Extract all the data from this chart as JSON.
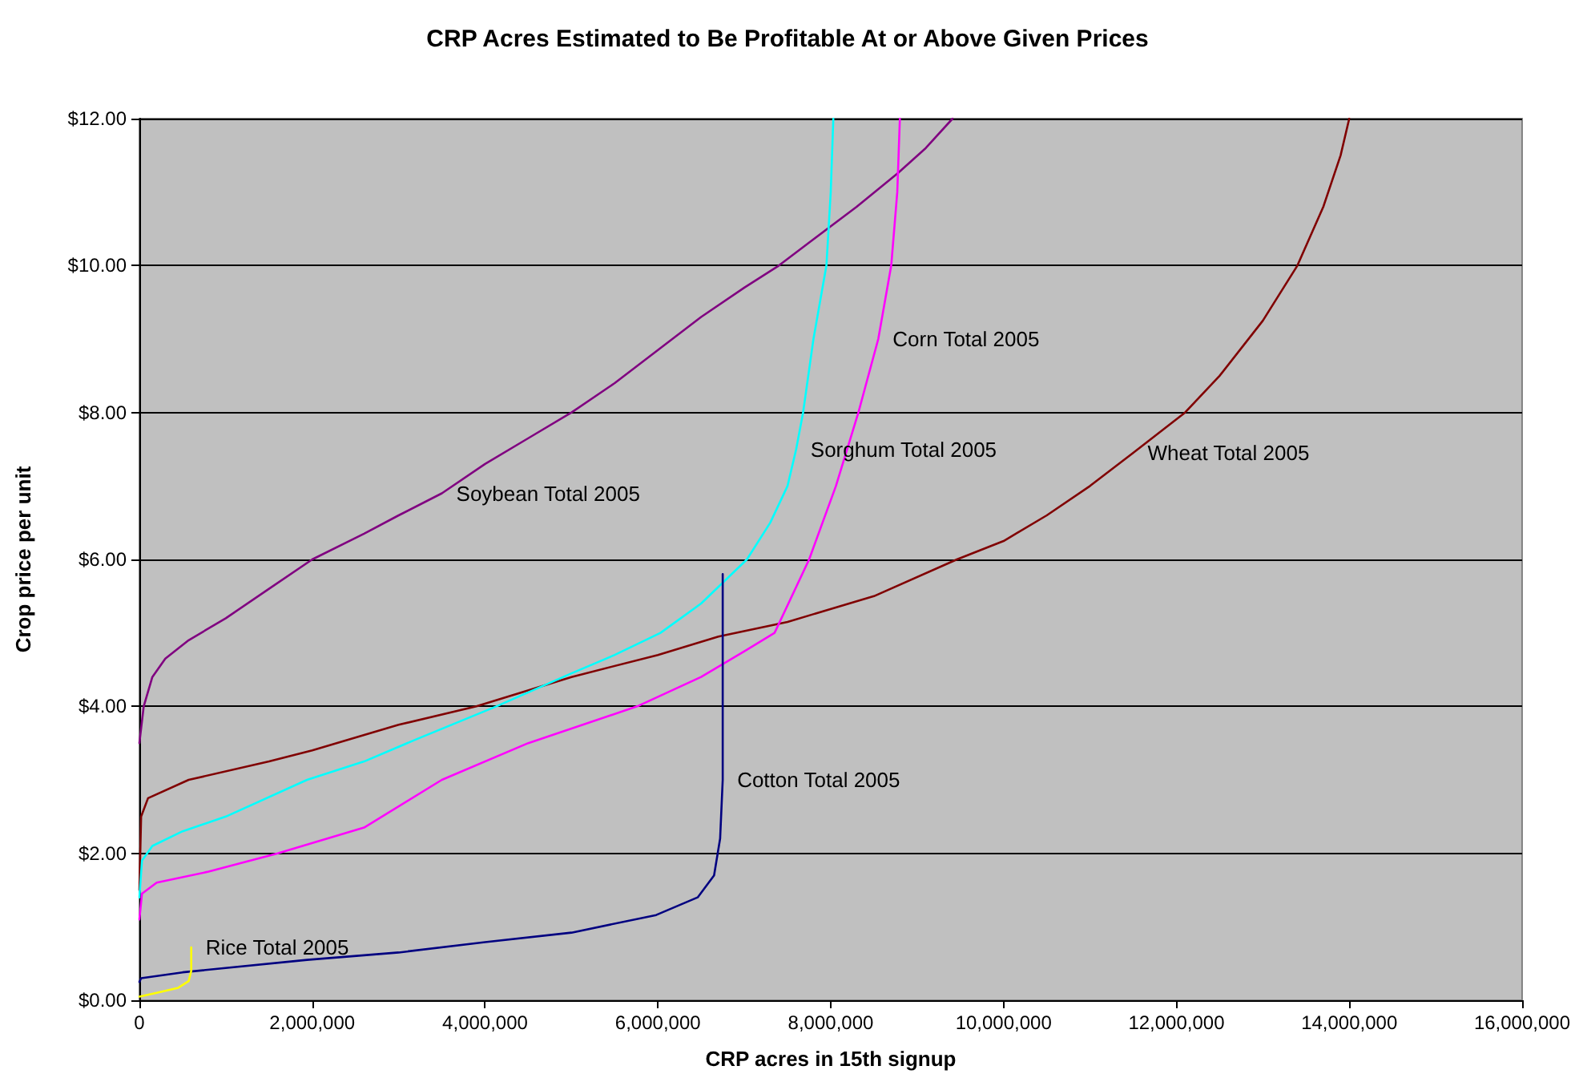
{
  "chart_data": {
    "type": "line",
    "title": "CRP Acres Estimated to Be Profitable At or Above Given Prices",
    "xlabel": "CRP acres in 15th signup",
    "ylabel": "Crop price per unit",
    "xlim": [
      0,
      16000000
    ],
    "ylim": [
      0,
      12
    ],
    "xticks": [
      {
        "value": 0,
        "label": "0"
      },
      {
        "value": 2000000,
        "label": "2,000,000"
      },
      {
        "value": 4000000,
        "label": "4,000,000"
      },
      {
        "value": 6000000,
        "label": "6,000,000"
      },
      {
        "value": 8000000,
        "label": "8,000,000"
      },
      {
        "value": 10000000,
        "label": "10,000,000"
      },
      {
        "value": 12000000,
        "label": "12,000,000"
      },
      {
        "value": 14000000,
        "label": "14,000,000"
      },
      {
        "value": 16000000,
        "label": "16,000,000"
      }
    ],
    "yticks": [
      {
        "value": 0,
        "label": "$0.00"
      },
      {
        "value": 2,
        "label": "$2.00"
      },
      {
        "value": 4,
        "label": "$4.00"
      },
      {
        "value": 6,
        "label": "$6.00"
      },
      {
        "value": 8,
        "label": "$8.00"
      },
      {
        "value": 10,
        "label": "$10.00"
      },
      {
        "value": 12,
        "label": "$12.00"
      }
    ],
    "grid": "y",
    "marker": "none",
    "line_style": "solid",
    "series": [
      {
        "color": "#800080",
        "x": [
          0,
          50000,
          150000,
          300000,
          570000,
          1000000,
          1500000,
          2000000,
          2600000,
          3000000,
          3500000,
          4000000,
          4500000,
          5000000,
          5500000,
          6000000,
          6500000,
          7000000,
          7400000,
          7770000,
          8300000,
          8780000,
          9100000,
          9410000
        ],
        "values": [
          3.5,
          4.0,
          4.4,
          4.65,
          4.9,
          5.2,
          5.6,
          6.0,
          6.35,
          6.6,
          6.9,
          7.3,
          7.65,
          8.0,
          8.4,
          8.85,
          9.3,
          9.7,
          10.0,
          10.33,
          10.8,
          11.26,
          11.6,
          12.0
        ]
      },
      {
        "color": "#800000",
        "x": [
          0,
          20000,
          100000,
          570000,
          1500000,
          2000000,
          3000000,
          3900000,
          5000000,
          6000000,
          6700000,
          7500000,
          8500000,
          9460000,
          10000000,
          10500000,
          11000000,
          11500000,
          12100000,
          12500000,
          13000000,
          13400000,
          13700000,
          13900000,
          14000000
        ],
        "values": [
          1.5,
          2.5,
          2.75,
          3.0,
          3.25,
          3.4,
          3.75,
          4.0,
          4.4,
          4.7,
          4.95,
          5.15,
          5.5,
          6.0,
          6.25,
          6.6,
          7.0,
          7.45,
          8.0,
          8.5,
          9.25,
          10.0,
          10.8,
          11.5,
          12.0
        ]
      },
      {
        "color": "#00ffff",
        "x": [
          0,
          30000,
          150000,
          500000,
          1000000,
          1940000,
          2600000,
          3200000,
          4130000,
          5000000,
          5500000,
          6030000,
          6500000,
          7030000,
          7300000,
          7500000,
          7600000,
          7680000,
          7800000,
          7950000,
          8000000,
          8030000
        ],
        "values": [
          1.4,
          1.9,
          2.1,
          2.3,
          2.5,
          3.0,
          3.25,
          3.55,
          4.0,
          4.45,
          4.7,
          5.0,
          5.4,
          6.0,
          6.5,
          7.0,
          7.5,
          8.0,
          9.0,
          10.0,
          11.0,
          12.0
        ]
      },
      {
        "color": "#ff00ff",
        "x": [
          0,
          30000,
          200000,
          800000,
          1600000,
          2600000,
          3500000,
          4500000,
          5760000,
          6500000,
          7000000,
          7350000,
          7750000,
          8060000,
          8320000,
          8550000,
          8700000,
          8770000,
          8800000
        ],
        "values": [
          1.1,
          1.45,
          1.6,
          1.75,
          2.0,
          2.35,
          3.0,
          3.5,
          4.0,
          4.4,
          4.75,
          5.0,
          6.0,
          7.0,
          8.0,
          9.0,
          10.0,
          11.0,
          12.0
        ]
      },
      {
        "color": "#000080",
        "x": [
          0,
          20000,
          500000,
          1940000,
          3000000,
          4000000,
          5000000,
          5980000,
          6460000,
          6650000,
          6720000,
          6750000,
          6750000
        ],
        "values": [
          0.25,
          0.3,
          0.38,
          0.55,
          0.65,
          0.79,
          0.92,
          1.16,
          1.4,
          1.7,
          2.2,
          3.0,
          5.8
        ]
      },
      {
        "color": "#ffff00",
        "x": [
          0,
          200000,
          450000,
          570000,
          600000,
          600000
        ],
        "values": [
          0.05,
          0.1,
          0.17,
          0.26,
          0.4,
          0.72
        ]
      }
    ],
    "annotations": [
      {
        "text": "Soybean Total 2005",
        "x": 3500000,
        "y": 6.9
      },
      {
        "text": "Corn Total 2005",
        "x": 8550000,
        "y": 9.0
      },
      {
        "text": "Sorghum Total 2005",
        "x": 7600000,
        "y": 7.5
      },
      {
        "text": "Wheat Total 2005",
        "x": 11500000,
        "y": 7.45
      },
      {
        "text": "Cotton Total 2005",
        "x": 6750000,
        "y": 3.0
      },
      {
        "text": "Rice Total 2005",
        "x": 600000,
        "y": 0.72
      }
    ]
  }
}
